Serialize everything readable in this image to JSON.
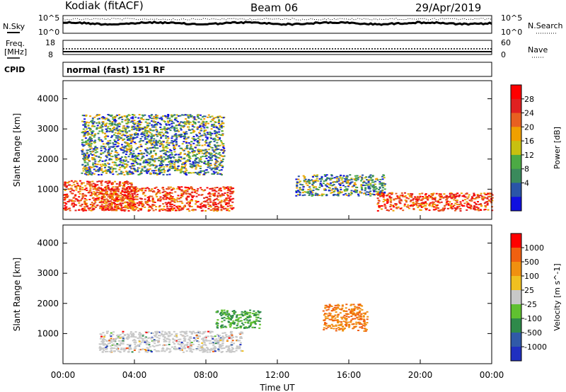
{
  "header": {
    "station": "Kodiak (fitACF)",
    "beam": "Beam 06",
    "date": "29/Apr/2019"
  },
  "noise_panel": {
    "left_label": "N.Sky",
    "right_label": "N.Search",
    "ticks_left": [
      "10^5",
      "10^0"
    ],
    "ticks_right": [
      "10^5",
      "10^0"
    ]
  },
  "freq_panel": {
    "left_label_1": "Freq.",
    "left_label_2": "[MHz]",
    "right_label": "Nave",
    "ticks_left": [
      "18",
      "8"
    ],
    "ticks_right": [
      "60",
      "0"
    ]
  },
  "cpid_panel": {
    "label": "CPID",
    "text": "normal (fast) 151 RF"
  },
  "chart_data": [
    {
      "type": "heatmap",
      "title": "",
      "ylabel": "Slant Range [km]",
      "y_ticks": [
        "4000",
        "3000",
        "2000",
        "1000"
      ],
      "colorbar_label": "Power [dB]",
      "colorbar_ticks": [
        "28",
        "24",
        "20",
        "16",
        "12",
        "8",
        "4"
      ],
      "colorbar_colors": [
        "#1010e0",
        "#2a55a8",
        "#3a8a5c",
        "#4caa44",
        "#c8c010",
        "#f0a000",
        "#e86020",
        "#e02020",
        "#ff0000"
      ],
      "scatter_regions": [
        {
          "time": [
            "00:00",
            "04:00"
          ],
          "range_km": [
            300,
            1300
          ],
          "level": "high"
        },
        {
          "time": [
            "02:00",
            "09:30"
          ],
          "range_km": [
            300,
            1100
          ],
          "level": "high"
        },
        {
          "time": [
            "01:00",
            "09:00"
          ],
          "range_km": [
            1500,
            3500
          ],
          "level": "mid"
        },
        {
          "time": [
            "13:00",
            "18:00"
          ],
          "range_km": [
            800,
            1500
          ],
          "level": "mid"
        },
        {
          "time": [
            "17:30",
            "24:00"
          ],
          "range_km": [
            300,
            900
          ],
          "level": "high"
        }
      ]
    },
    {
      "type": "heatmap",
      "title": "",
      "ylabel": "Slant Range [km]",
      "xlabel": "Time UT",
      "x_ticks": [
        "00:00",
        "04:00",
        "08:00",
        "12:00",
        "16:00",
        "20:00",
        "00:00"
      ],
      "y_ticks": [
        "4000",
        "3000",
        "2000",
        "1000"
      ],
      "colorbar_label": "Velocity [m s^-1]",
      "colorbar_ticks": [
        "1000",
        "500",
        "100",
        "25",
        "-25",
        "-100",
        "-500",
        "-1000"
      ],
      "colorbar_colors": [
        "#2030c0",
        "#305aa8",
        "#2e8a4a",
        "#60c030",
        "#c8c8c8",
        "#f0c020",
        "#f09010",
        "#f06010",
        "#ff0000"
      ],
      "scatter_regions": [
        {
          "time": [
            "02:00",
            "10:00"
          ],
          "range_km": [
            400,
            1100
          ],
          "level": "grey"
        },
        {
          "time": [
            "14:30",
            "17:00"
          ],
          "range_km": [
            1100,
            2000
          ],
          "level": "orange"
        },
        {
          "time": [
            "08:30",
            "11:00"
          ],
          "range_km": [
            1200,
            1800
          ],
          "level": "green"
        }
      ]
    }
  ]
}
